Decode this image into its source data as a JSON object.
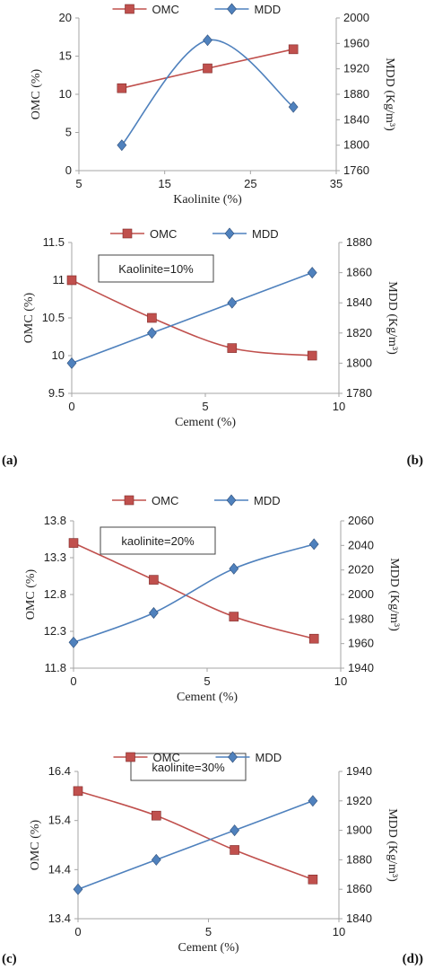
{
  "colors": {
    "omc": "#C0504D",
    "mdd": "#4F81BD",
    "axis": "#A6A6A6",
    "text": "#222222"
  },
  "panel_labels": [
    "(a)",
    "(b)",
    "(c)",
    "(d))"
  ],
  "chart_data": [
    {
      "type": "line",
      "xlabel": "Kaolinite (%)",
      "ylabel": "OMC (%)",
      "y2label": "MDD (Kg/m³)",
      "annotation": "",
      "xlim": [
        5,
        35
      ],
      "xticks": [
        5,
        15,
        25,
        35
      ],
      "ylim": [
        0,
        20
      ],
      "yticks": [
        0,
        5,
        10,
        15,
        20
      ],
      "y2lim": [
        1760,
        2000
      ],
      "y2ticks": [
        1760,
        1800,
        1840,
        1880,
        1920,
        1960,
        2000
      ],
      "legend": {
        "position": "top",
        "items": [
          "OMC",
          "MDD"
        ]
      },
      "grid": false,
      "series": [
        {
          "name": "OMC",
          "axis": "left",
          "marker": "square",
          "smooth": false,
          "x": [
            10,
            20,
            30
          ],
          "values": [
            10.8,
            13.4,
            15.9
          ]
        },
        {
          "name": "MDD",
          "axis": "right",
          "marker": "diamond",
          "smooth": true,
          "x": [
            10,
            20,
            30
          ],
          "values": [
            1800,
            1965,
            1860
          ]
        }
      ]
    },
    {
      "type": "line",
      "xlabel": "Cement (%)",
      "ylabel": "OMC (%)",
      "y2label": "MDD (Kg/m³)",
      "annotation": "Kaolinite=10%",
      "xlim": [
        0,
        10
      ],
      "xticks": [
        0,
        5,
        10
      ],
      "ylim": [
        9.5,
        11.5
      ],
      "yticks": [
        9.5,
        10,
        10.5,
        11,
        11.5
      ],
      "y2lim": [
        1780,
        1880
      ],
      "y2ticks": [
        1780,
        1800,
        1820,
        1840,
        1860,
        1880
      ],
      "legend": {
        "position": "top",
        "items": [
          "OMC",
          "MDD"
        ]
      },
      "grid": false,
      "series": [
        {
          "name": "OMC",
          "axis": "left",
          "marker": "square",
          "smooth": true,
          "x": [
            0,
            3,
            6,
            9
          ],
          "values": [
            11.0,
            10.5,
            10.1,
            10.0
          ]
        },
        {
          "name": "MDD",
          "axis": "right",
          "marker": "diamond",
          "smooth": true,
          "x": [
            0,
            3,
            6,
            9
          ],
          "values": [
            1800,
            1820,
            1840,
            1860
          ]
        }
      ]
    },
    {
      "type": "line",
      "xlabel": "Cement (%)",
      "ylabel": "OMC (%)",
      "y2label": "MDD (Kg/m³)",
      "annotation": "kaolinite=20%",
      "xlim": [
        0,
        10
      ],
      "xticks": [
        0,
        5,
        10
      ],
      "ylim": [
        11.8,
        13.8
      ],
      "yticks": [
        11.8,
        12.3,
        12.8,
        13.3,
        13.8
      ],
      "y2lim": [
        1940,
        2060
      ],
      "y2ticks": [
        1940,
        1960,
        1980,
        2000,
        2020,
        2040,
        2060
      ],
      "legend": {
        "position": "top",
        "items": [
          "OMC",
          "MDD"
        ]
      },
      "grid": false,
      "series": [
        {
          "name": "OMC",
          "axis": "left",
          "marker": "square",
          "smooth": true,
          "x": [
            0,
            3,
            6,
            9
          ],
          "values": [
            13.5,
            13.0,
            12.5,
            12.2
          ]
        },
        {
          "name": "MDD",
          "axis": "right",
          "marker": "diamond",
          "smooth": true,
          "x": [
            0,
            3,
            6,
            9
          ],
          "values": [
            1961,
            1985,
            2021,
            2041
          ]
        }
      ]
    },
    {
      "type": "line",
      "xlabel": "Cement (%)",
      "ylabel": "OMC (%)",
      "y2label": "MDD (Kg/m³)",
      "annotation": "kaolinite=30%",
      "xlim": [
        0,
        10
      ],
      "xticks": [
        0,
        5,
        10
      ],
      "ylim": [
        13.4,
        16.4
      ],
      "yticks": [
        13.4,
        14.4,
        15.4,
        16.4
      ],
      "y2lim": [
        1840,
        1940
      ],
      "y2ticks": [
        1840,
        1860,
        1880,
        1900,
        1920,
        1940
      ],
      "legend": {
        "position": "top",
        "items": [
          "OMC",
          "MDD"
        ]
      },
      "grid": false,
      "series": [
        {
          "name": "OMC",
          "axis": "left",
          "marker": "square",
          "smooth": true,
          "x": [
            0,
            3,
            6,
            9
          ],
          "values": [
            16.0,
            15.5,
            14.8,
            14.2
          ]
        },
        {
          "name": "MDD",
          "axis": "right",
          "marker": "diamond",
          "smooth": true,
          "x": [
            0,
            3,
            6,
            9
          ],
          "values": [
            1860,
            1880,
            1900,
            1920
          ]
        }
      ]
    }
  ]
}
